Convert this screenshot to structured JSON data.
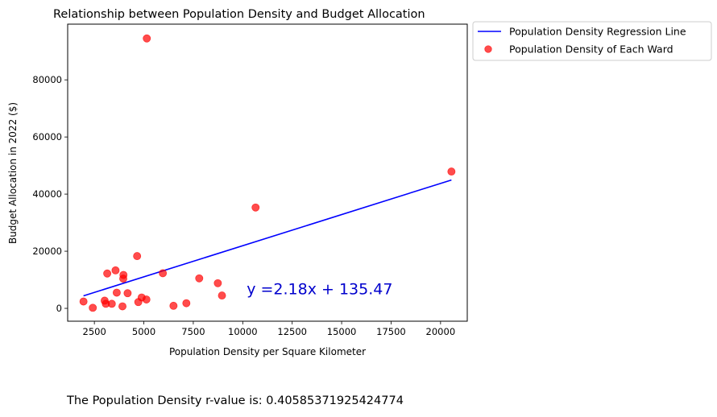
{
  "chart_data": {
    "type": "scatter",
    "title": "Relationship between Population Density and Budget Allocation",
    "xlabel": "Population Density per Square Kilometer",
    "ylabel": "Budget Allocation in 2022 ($)",
    "xlim": [
      1150,
      21350
    ],
    "ylim": [
      -4500,
      99500
    ],
    "xticks": [
      2500,
      5000,
      7500,
      10000,
      12500,
      15000,
      17500,
      20000
    ],
    "yticks": [
      0,
      20000,
      40000,
      60000,
      80000
    ],
    "legend_position": "outside top-right",
    "series": [
      {
        "name": "Population Density Regression Line",
        "kind": "line",
        "color": "#0000ff",
        "x": [
          1950,
          20550
        ],
        "y": [
          4386,
          44934
        ]
      },
      {
        "name": "Population Density of Each Ward",
        "kind": "scatter",
        "color": "#ff0000",
        "opacity": 0.7,
        "x": [
          1950,
          2420,
          3020,
          3080,
          3150,
          3380,
          3570,
          3630,
          3920,
          3960,
          3970,
          4180,
          4660,
          4720,
          4890,
          5130,
          5150,
          5960,
          6500,
          7150,
          7800,
          8740,
          8950,
          10650,
          20550
        ],
        "y": [
          2400,
          200,
          2700,
          1600,
          12200,
          1600,
          13300,
          5500,
          700,
          10400,
          11700,
          5300,
          18300,
          2200,
          3800,
          3100,
          94500,
          12300,
          900,
          1800,
          10500,
          8800,
          4500,
          35300,
          47900
        ]
      }
    ],
    "annotations": [
      {
        "text": "y =2.18x + 135.47",
        "color": "#0000cd",
        "x": 10200,
        "y": 5000
      }
    ]
  },
  "footer": {
    "rvalue_text": "The Population Density r-value is: 0.40585371925424774"
  }
}
